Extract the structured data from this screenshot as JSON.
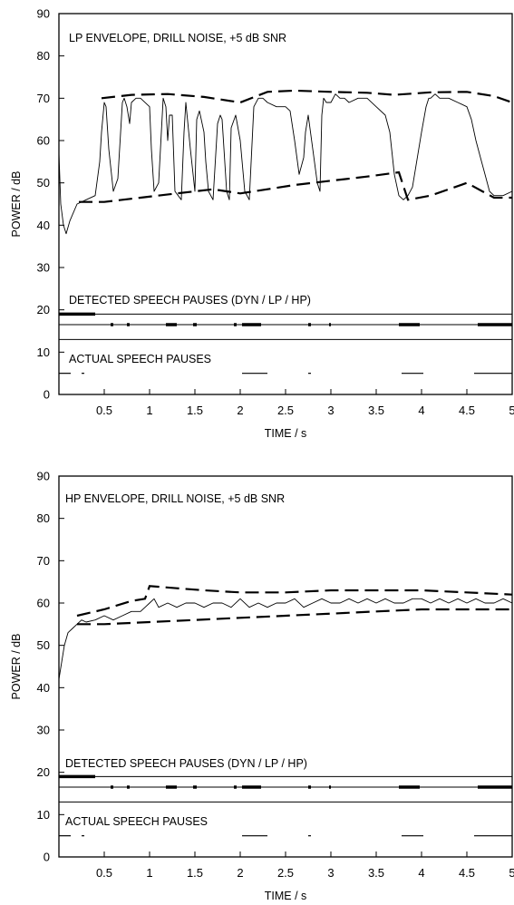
{
  "chart_data": [
    {
      "type": "line",
      "title": "LP ENVELOPE, DRILL NOISE, +5 dB SNR",
      "xlabel": "TIME / s",
      "ylabel": "POWER / dB",
      "xlim": [
        0,
        5
      ],
      "ylim": [
        0,
        90
      ],
      "xticks": [
        0.5,
        1,
        1.5,
        2,
        2.5,
        3,
        3.5,
        4,
        4.5,
        5
      ],
      "xtick_labels": [
        "0.5",
        "1",
        "1.5",
        "2",
        "2.5",
        "3",
        "3.5",
        "4",
        "4.5",
        "5"
      ],
      "yticks": [
        0,
        10,
        20,
        30,
        40,
        50,
        60,
        70,
        80,
        90
      ],
      "ytick_labels": [
        "0",
        "10",
        "20",
        "30",
        "40",
        "50",
        "60",
        "70",
        "80",
        "90"
      ],
      "detected_label": "DETECTED SPEECH PAUSES (DYN / LP / HP)",
      "actual_label": "ACTUAL SPEECH PAUSES",
      "series": [
        {
          "style": "solid",
          "x": [
            0.0,
            0.02,
            0.05,
            0.08,
            0.12,
            0.2,
            0.3,
            0.4,
            0.45,
            0.47,
            0.5,
            0.52,
            0.55,
            0.6,
            0.65,
            0.7,
            0.72,
            0.75,
            0.78,
            0.8,
            0.85,
            0.9,
            1.0,
            1.02,
            1.05,
            1.1,
            1.15,
            1.18,
            1.2,
            1.22,
            1.25,
            1.28,
            1.35,
            1.38,
            1.4,
            1.45,
            1.5,
            1.52,
            1.55,
            1.6,
            1.62,
            1.65,
            1.7,
            1.75,
            1.78,
            1.8,
            1.85,
            1.88,
            1.9,
            1.95,
            2.0,
            2.05,
            2.1,
            2.15,
            2.2,
            2.25,
            2.3,
            2.4,
            2.5,
            2.55,
            2.6,
            2.65,
            2.7,
            2.72,
            2.75,
            2.8,
            2.85,
            2.88,
            2.9,
            2.92,
            2.95,
            3.0,
            3.05,
            3.1,
            3.15,
            3.2,
            3.3,
            3.4,
            3.5,
            3.6,
            3.65,
            3.7,
            3.75,
            3.8,
            3.85,
            3.9,
            4.0,
            4.05,
            4.08,
            4.1,
            4.15,
            4.2,
            4.3,
            4.4,
            4.5,
            4.55,
            4.6,
            4.65,
            4.7,
            4.75,
            4.8,
            4.85,
            4.9,
            5.0
          ],
          "y": [
            57,
            45,
            40,
            38,
            41,
            45,
            46,
            47,
            55,
            62,
            69,
            68,
            58,
            48,
            51,
            69,
            70,
            68,
            64,
            69,
            70,
            70,
            68,
            58,
            48,
            50,
            70,
            68,
            60,
            66,
            66,
            48,
            46,
            62,
            69,
            58,
            48,
            65,
            67,
            62,
            55,
            48,
            46,
            64,
            66,
            65,
            48,
            46,
            63,
            66,
            60,
            48,
            46,
            68,
            70,
            70,
            69,
            68,
            68,
            67,
            60,
            52,
            56,
            62,
            66,
            58,
            50,
            48,
            66,
            70,
            69,
            69,
            71,
            70,
            70,
            69,
            70,
            70,
            68,
            66,
            62,
            52,
            47,
            46,
            47,
            49,
            62,
            68,
            70,
            70,
            71,
            70,
            70,
            69,
            68,
            65,
            60,
            56,
            52,
            48,
            47,
            47,
            47,
            48
          ]
        },
        {
          "style": "dashed",
          "x": [
            0.47,
            0.8,
            1.2,
            1.6,
            2.0,
            2.3,
            2.6,
            3.0,
            3.4,
            3.7,
            4.1,
            4.5,
            4.8,
            5.0
          ],
          "y": [
            70,
            70.8,
            71,
            70.3,
            69,
            71.5,
            71.8,
            71.5,
            71.3,
            70.8,
            71.4,
            71.5,
            70.5,
            69
          ]
        },
        {
          "style": "dashed",
          "x": [
            0.22,
            0.5,
            0.9,
            1.3,
            1.7,
            2.0,
            2.3,
            2.6,
            3.0,
            3.4,
            3.75,
            3.85,
            4.1,
            4.5,
            4.8,
            5.0
          ],
          "y": [
            45.5,
            45.5,
            46.5,
            47.5,
            48.5,
            47.5,
            48.5,
            49.5,
            50.5,
            51.5,
            52.5,
            46,
            47,
            50,
            46.5,
            46.5
          ]
        }
      ],
      "detected_pauses": {
        "dyn": {
          "y": 19,
          "intervals": [
            [
              0.0,
              0.4
            ]
          ]
        },
        "lp": {
          "y": 16.5,
          "intervals": [
            [
              0.57,
              0.6
            ],
            [
              0.75,
              0.78
            ],
            [
              1.18,
              1.3
            ],
            [
              1.48,
              1.52
            ],
            [
              1.93,
              1.96
            ],
            [
              2.02,
              2.23
            ],
            [
              2.75,
              2.78
            ],
            [
              2.98,
              3.0
            ],
            [
              3.75,
              3.98
            ],
            [
              4.62,
              5.0
            ]
          ]
        },
        "hp": {
          "y": 13,
          "intervals": []
        }
      },
      "actual_pauses": {
        "y": 5,
        "intervals": [
          [
            0.0,
            0.13
          ],
          [
            0.25,
            0.28
          ],
          [
            2.02,
            2.3
          ],
          [
            2.75,
            2.78
          ],
          [
            3.78,
            4.02
          ],
          [
            4.58,
            5.0
          ]
        ]
      }
    },
    {
      "type": "line",
      "title": "HP ENVELOPE, DRILL NOISE, +5 dB SNR",
      "xlabel": "TIME / s",
      "ylabel": "POWER / dB",
      "xlim": [
        0,
        5
      ],
      "ylim": [
        0,
        90
      ],
      "xticks": [
        0.5,
        1,
        1.5,
        2,
        2.5,
        3,
        3.5,
        4,
        4.5,
        5
      ],
      "xtick_labels": [
        "0.5",
        "1",
        "1.5",
        "2",
        "2.5",
        "3",
        "3.5",
        "4",
        "4.5",
        "5"
      ],
      "yticks": [
        0,
        10,
        20,
        30,
        40,
        50,
        60,
        70,
        80,
        90
      ],
      "ytick_labels": [
        "0",
        "10",
        "20",
        "30",
        "40",
        "50",
        "60",
        "70",
        "80",
        "90"
      ],
      "detected_label": "DETECTED SPEECH PAUSES (DYN / LP / HP)",
      "actual_label": "ACTUAL SPEECH PAUSES",
      "series": [
        {
          "style": "solid",
          "x": [
            0.0,
            0.03,
            0.06,
            0.1,
            0.15,
            0.2,
            0.25,
            0.3,
            0.4,
            0.5,
            0.6,
            0.7,
            0.8,
            0.9,
            0.95,
            1.0,
            1.05,
            1.1,
            1.2,
            1.3,
            1.4,
            1.5,
            1.6,
            1.7,
            1.8,
            1.9,
            2.0,
            2.1,
            2.2,
            2.3,
            2.4,
            2.5,
            2.6,
            2.7,
            2.8,
            2.9,
            3.0,
            3.1,
            3.2,
            3.3,
            3.4,
            3.5,
            3.6,
            3.7,
            3.8,
            3.9,
            4.0,
            4.1,
            4.2,
            4.3,
            4.4,
            4.5,
            4.6,
            4.7,
            4.8,
            4.9,
            5.0
          ],
          "y": [
            42,
            46,
            50,
            53,
            54,
            55,
            56,
            55.5,
            56,
            57,
            56,
            57,
            58,
            58,
            59,
            60,
            61,
            59,
            60,
            59,
            60,
            60,
            59,
            60,
            60,
            59,
            61,
            59,
            60,
            59,
            60,
            60,
            61,
            59,
            60,
            61,
            60,
            60,
            61,
            60,
            61,
            60,
            61,
            60,
            60,
            61,
            61,
            60,
            61,
            60,
            61,
            60,
            61,
            60,
            60,
            61,
            60
          ]
        },
        {
          "style": "dashed",
          "x": [
            0.2,
            0.5,
            0.8,
            0.95,
            1.0,
            1.3,
            1.6,
            2.0,
            2.5,
            3.0,
            3.5,
            4.0,
            4.5,
            5.0
          ],
          "y": [
            57,
            58.5,
            60.5,
            61,
            64,
            63.5,
            63,
            62.5,
            62.5,
            63,
            63,
            63,
            62.5,
            62
          ]
        },
        {
          "style": "dashed",
          "x": [
            0.2,
            0.5,
            1.0,
            1.5,
            2.0,
            2.5,
            3.0,
            3.5,
            4.0,
            4.5,
            5.0
          ],
          "y": [
            55,
            55,
            55.5,
            56,
            56.5,
            57,
            57.5,
            58,
            58.5,
            58.5,
            58.5
          ]
        }
      ],
      "detected_pauses": {
        "dyn": {
          "y": 19,
          "intervals": [
            [
              0.0,
              0.4
            ]
          ]
        },
        "lp": {
          "y": 16.5,
          "intervals": [
            [
              0.57,
              0.6
            ],
            [
              0.75,
              0.78
            ],
            [
              1.18,
              1.3
            ],
            [
              1.48,
              1.52
            ],
            [
              1.93,
              1.96
            ],
            [
              2.02,
              2.23
            ],
            [
              2.75,
              2.78
            ],
            [
              2.98,
              3.0
            ],
            [
              3.75,
              3.98
            ],
            [
              4.62,
              5.0
            ]
          ]
        },
        "hp": {
          "y": 13,
          "intervals": []
        }
      },
      "actual_pauses": {
        "y": 5,
        "intervals": [
          [
            0.0,
            0.13
          ],
          [
            0.25,
            0.28
          ],
          [
            2.02,
            2.3
          ],
          [
            2.75,
            2.78
          ],
          [
            3.78,
            4.02
          ],
          [
            4.58,
            5.0
          ]
        ]
      }
    }
  ]
}
